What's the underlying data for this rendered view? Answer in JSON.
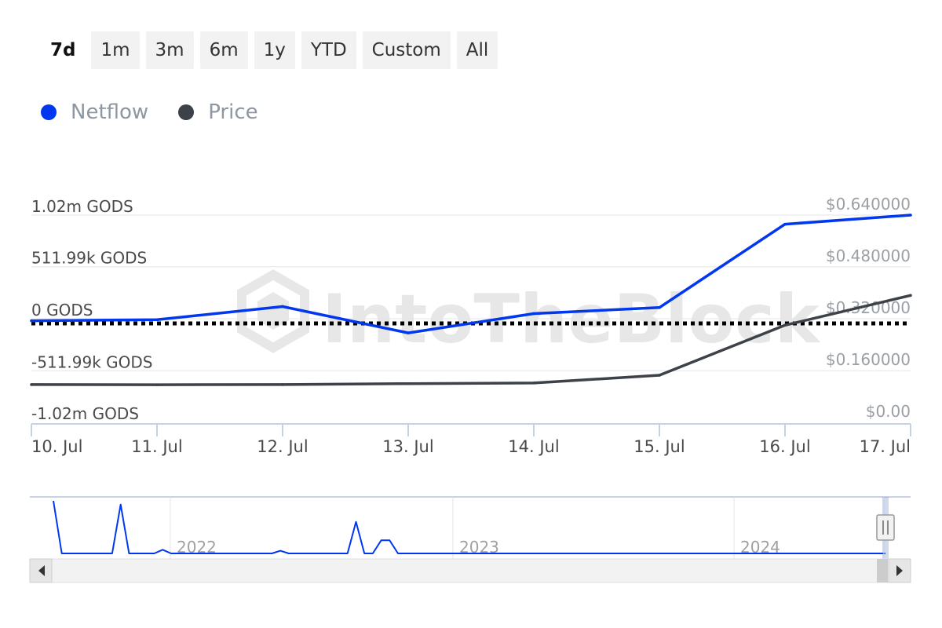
{
  "range_selector": {
    "buttons": [
      "7d",
      "1m",
      "3m",
      "6m",
      "1y",
      "YTD",
      "Custom",
      "All"
    ],
    "active": "7d"
  },
  "legend": {
    "items": [
      {
        "label": "Netflow",
        "color": "#0037ef"
      },
      {
        "label": "Price",
        "color": "#3d4148"
      }
    ]
  },
  "chart_data": {
    "type": "line",
    "categories": [
      "10. Jul",
      "11. Jul",
      "12. Jul",
      "13. Jul",
      "14. Jul",
      "15. Jul",
      "16. Jul",
      "17. Jul"
    ],
    "series": [
      {
        "name": "Netflow",
        "axis": "left",
        "color": "#0037ef",
        "values": [
          -20000,
          -10000,
          120000,
          -140000,
          50000,
          110000,
          930000,
          1020000
        ]
      },
      {
        "name": "Price",
        "axis": "right",
        "color": "#3d4148",
        "values": [
          0.1165,
          0.116,
          0.1165,
          0.1195,
          0.1215,
          0.1455,
          0.3,
          0.392
        ]
      }
    ],
    "y_left": {
      "ticks": [
        1020000,
        511990,
        0,
        -511990,
        -1020000
      ],
      "tick_labels": [
        "1.02m GODS",
        "511.99k GODS",
        "0 GODS",
        "-511.99k GODS",
        "-1.02m GODS"
      ],
      "range": [
        -1020000,
        1020000
      ]
    },
    "y_right": {
      "ticks": [
        0.64,
        0.48,
        0.32,
        0.16,
        0
      ],
      "tick_labels": [
        "$0.640000",
        "$0.480000",
        "$0.320000",
        "$0.160000",
        "$0.00"
      ],
      "range": [
        0,
        0.64
      ]
    },
    "zero_line": "dotted",
    "grid": true,
    "watermark": "IntoTheBlock"
  },
  "navigator": {
    "year_labels": [
      "2022",
      "2023",
      "2024"
    ],
    "series_values": [
      1.0,
      0.0,
      0.0,
      0.0,
      0.0,
      0.0,
      0.0,
      0.0,
      0.93,
      0.0,
      0.0,
      0.0,
      0.0,
      0.07,
      0.0,
      0.0,
      0.0,
      0.0,
      0.0,
      0.0,
      0.0,
      0.0,
      0.0,
      0.0,
      0.0,
      0.0,
      0.0,
      0.05,
      0.0,
      0.0,
      0.0,
      0.0,
      0.0,
      0.0,
      0.0,
      0.0,
      0.6,
      0.0,
      0.0,
      0.25,
      0.25,
      0.0,
      0.0,
      0.0,
      0.0,
      0.0,
      0.0,
      0.0,
      0.0,
      0.0,
      0.0,
      0.0,
      0.0,
      0.0,
      0.0,
      0.0,
      0.0,
      0.0,
      0.0,
      0.0,
      0.0,
      0.0,
      0.0,
      0.0,
      0.0,
      0.0,
      0.0,
      0.0,
      0.0,
      0.0,
      0.0,
      0.0,
      0.0,
      0.0,
      0.0,
      0.0,
      0.0,
      0.0,
      0.0,
      0.0,
      0.0,
      0.0,
      0.0,
      0.0,
      0.0,
      0.0,
      0.0,
      0.0,
      0.0,
      0.0,
      0.0,
      0.0,
      0.0,
      0.0,
      0.0,
      0.0,
      0.0,
      0.0,
      0.0,
      0.0
    ],
    "scroll_left_icon": "arrow-left-icon",
    "scroll_right_icon": "arrow-right-icon",
    "handle_icon": "grip-handle-icon"
  }
}
